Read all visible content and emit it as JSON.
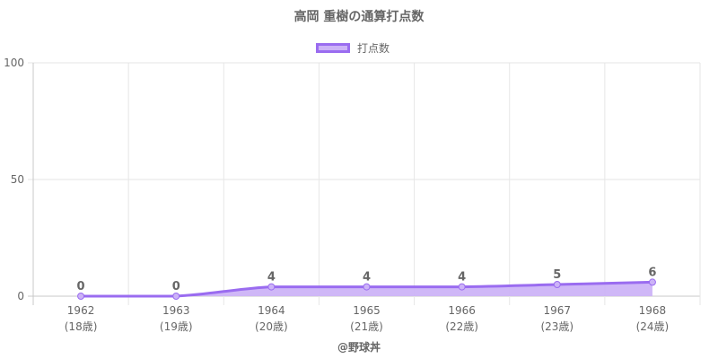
{
  "chart_data": {
    "type": "area",
    "title": "高岡 重樹の通算打点数",
    "legend": {
      "label": "打点数",
      "placement": "top"
    },
    "categories": [
      "1962",
      "1963",
      "1964",
      "1965",
      "1966",
      "1967",
      "1968"
    ],
    "category_sublabels": [
      "(18歳)",
      "(19歳)",
      "(20歳)",
      "(21歳)",
      "(22歳)",
      "(23歳)",
      "(24歳)"
    ],
    "series": [
      {
        "name": "打点数",
        "values": [
          0,
          0,
          4,
          4,
          4,
          5,
          6
        ]
      }
    ],
    "ylim": [
      0,
      100
    ],
    "yticks": [
      0,
      50,
      100
    ],
    "grid": true,
    "colors": {
      "line": "#9a6cf0",
      "fill": "#ccb3f7",
      "grid": "#e6e6e6",
      "axis": "#c8c8c8"
    }
  },
  "footer": {
    "watermark": "@野球丼"
  }
}
